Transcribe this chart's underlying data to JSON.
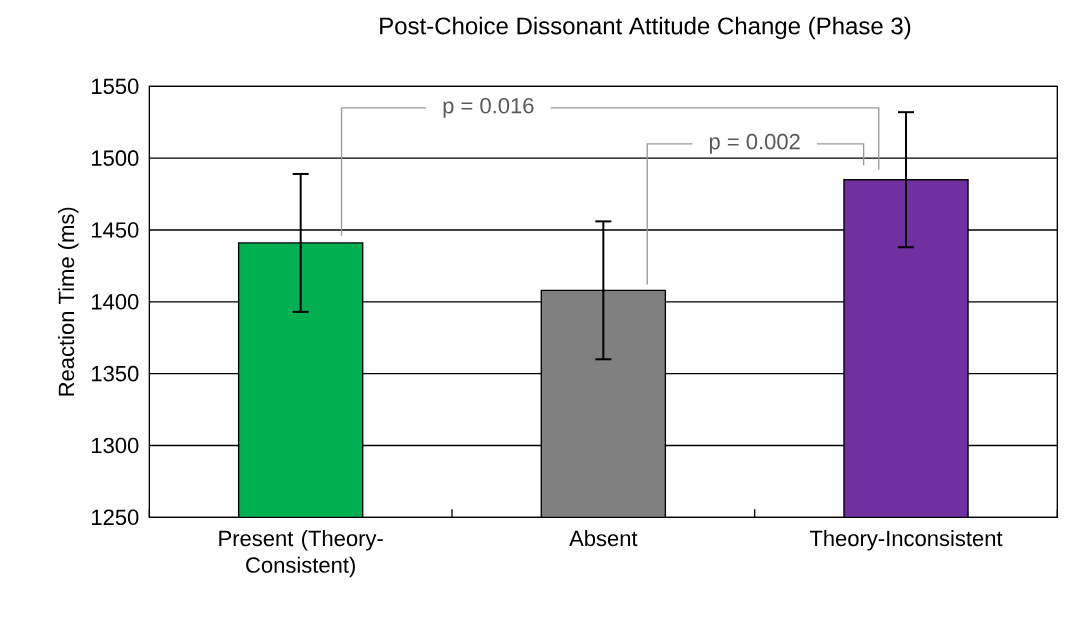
{
  "chart_data": {
    "type": "bar",
    "title": "Post-Choice Dissonant Attitude Change (Phase 3)",
    "ylabel": "Reaction Time (ms)",
    "categories": [
      "Present (Theory-Consistent)",
      "Absent",
      "Theory-Inconsistent"
    ],
    "values": [
      1441,
      1408,
      1485
    ],
    "errors": [
      48,
      48,
      47
    ],
    "colors": [
      "#00b050",
      "#808080",
      "#7030a0"
    ],
    "ylim": [
      1250,
      1550
    ],
    "yticks": [
      1250,
      1300,
      1350,
      1400,
      1450,
      1500,
      1550
    ],
    "grid": "y",
    "annotations": [
      "p = 0.016",
      "p = 0.002"
    ]
  }
}
